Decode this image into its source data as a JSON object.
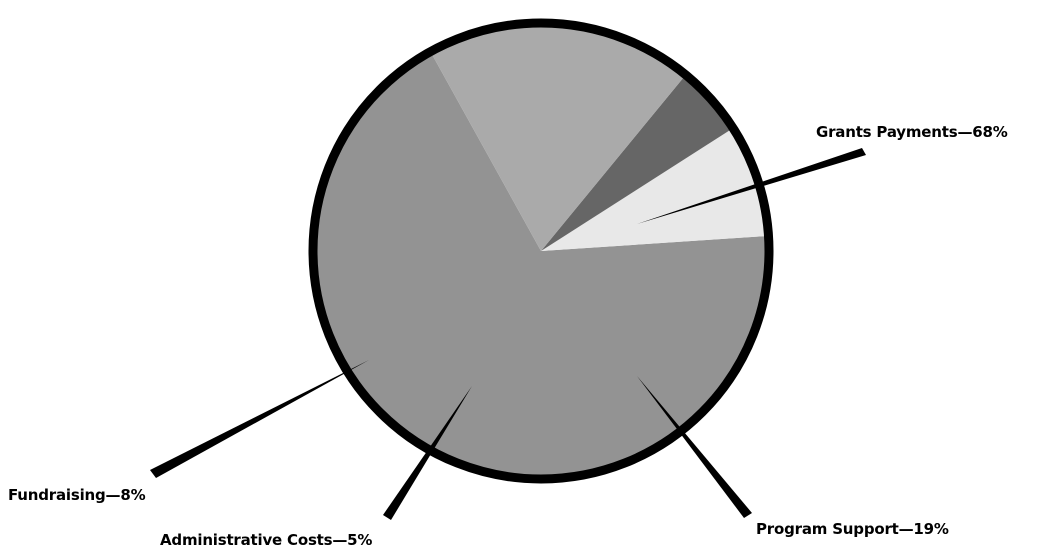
{
  "chart_data": {
    "type": "pie",
    "start_angle_deg": 119,
    "direction": "counterclockwise",
    "slices": [
      {
        "label": "Grants Payments—68%",
        "value": 68,
        "color": "#939393"
      },
      {
        "label": "Fundraising—8%",
        "value": 8,
        "color": "#e8e8e8"
      },
      {
        "label": "Administrative Costs—5%",
        "value": 5,
        "color": "#666666"
      },
      {
        "label": "Program Support—19%",
        "value": 19,
        "color": "#aaaaaa"
      }
    ],
    "outline_color": "#000000"
  }
}
